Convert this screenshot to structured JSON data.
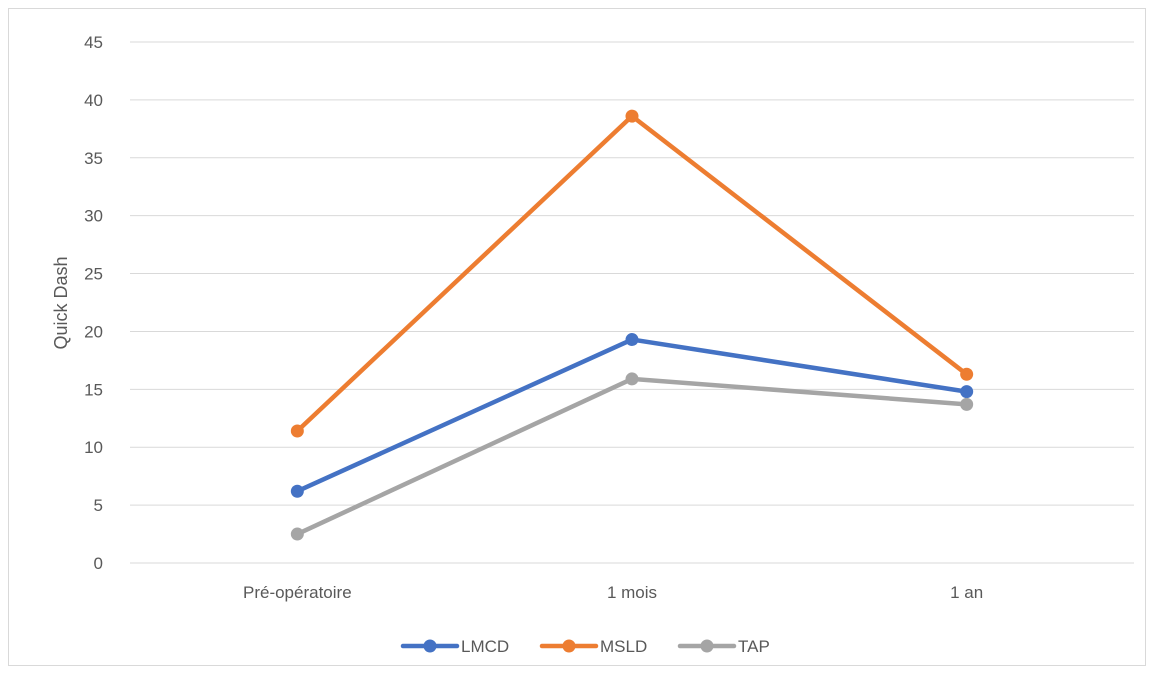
{
  "chart_data": {
    "type": "line",
    "title": "",
    "xlabel": "",
    "ylabel": "Quick Dash",
    "categories": [
      "Pré-opératoire",
      "1 mois",
      "1 an"
    ],
    "ylim": [
      0,
      45
    ],
    "yticks": [
      0,
      5,
      10,
      15,
      20,
      25,
      30,
      35,
      40,
      45
    ],
    "grid": true,
    "legend_position": "bottom",
    "series": [
      {
        "name": "LMCD",
        "color": "#4472c4",
        "values": [
          6.2,
          19.3,
          14.8
        ]
      },
      {
        "name": "MSLD",
        "color": "#ed7d31",
        "values": [
          11.4,
          38.6,
          16.3
        ]
      },
      {
        "name": "TAP",
        "color": "#a5a5a5",
        "values": [
          2.5,
          15.9,
          13.7
        ]
      }
    ]
  }
}
